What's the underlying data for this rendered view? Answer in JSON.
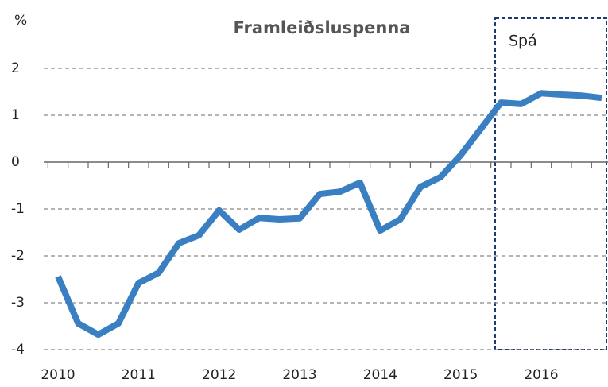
{
  "chart_data": {
    "type": "line",
    "title": "Framleiðsluspenna",
    "y_label": "%",
    "annotation": "Spá",
    "categories": [
      "2010",
      null,
      null,
      null,
      "2011",
      null,
      null,
      null,
      "2012",
      null,
      null,
      null,
      "2013",
      null,
      null,
      null,
      "2014",
      null,
      null,
      null,
      "2015",
      null,
      null,
      null,
      "2016",
      null,
      null,
      null
    ],
    "series": [
      {
        "name": "Framleiðsluspenna",
        "color": "#3a7fc1",
        "values": [
          -2.44,
          -3.44,
          -3.68,
          -3.44,
          -2.58,
          -2.36,
          -1.73,
          -1.56,
          -1.03,
          -1.44,
          -1.19,
          -1.22,
          -1.2,
          -0.68,
          -0.63,
          -0.44,
          -1.46,
          -1.22,
          -0.53,
          -0.32,
          0.15,
          0.71,
          1.27,
          1.24,
          1.47,
          1.44,
          1.42,
          1.37
        ]
      }
    ],
    "ylim": [
      -4,
      2
    ],
    "yticks": [
      2,
      1,
      0,
      -1,
      -2,
      -3,
      -4
    ],
    "grid": true
  }
}
